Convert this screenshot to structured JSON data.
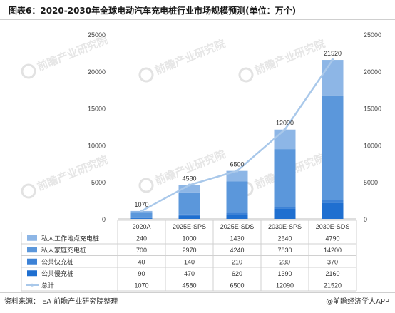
{
  "title": "图表6：2020-2030年全球电动汽车充电桩行业市场规模预测(单位：万个)",
  "source": "资料来源：IEA 前瞻产业研究院整理",
  "brand": "@前瞻经济学人APP",
  "watermark": "前瞻产业研究院",
  "colors": {
    "private_work": "#8db6e6",
    "private_home": "#5b97db",
    "public_fast": "#3d82d6",
    "public_slow": "#1f6fd0",
    "total_line": "#a9c8ea"
  },
  "chart_data": {
    "type": "bar",
    "stacked": true,
    "categories": [
      "2020A",
      "2025E-SPS",
      "2025E-SDS",
      "2030E-SPS",
      "2030E-SDS"
    ],
    "series": [
      {
        "name": "公共慢充桩",
        "values": [
          90,
          470,
          620,
          1390,
          2160
        ],
        "color_key": "public_slow"
      },
      {
        "name": "公共快充桩",
        "values": [
          40,
          140,
          210,
          230,
          370
        ],
        "color_key": "public_fast"
      },
      {
        "name": "私人家庭充电桩",
        "values": [
          700,
          2970,
          4240,
          7830,
          14200
        ],
        "color_key": "private_home"
      },
      {
        "name": "私人工作地点充电桩",
        "values": [
          240,
          1000,
          1430,
          2640,
          4790
        ],
        "color_key": "private_work"
      }
    ],
    "total": {
      "name": "总计",
      "values": [
        1070,
        4580,
        6500,
        12090,
        21520
      ],
      "type": "line"
    },
    "y_ticks": [
      0,
      5000,
      10000,
      15000,
      20000,
      25000
    ],
    "ylim": [
      0,
      25000
    ],
    "secondary_y_ticks": [
      0,
      5000,
      10000,
      15000,
      20000,
      25000
    ],
    "legend_placement": "data-table-left",
    "table_rows": [
      {
        "name": "私人工作地点充电桩",
        "values": [
          240,
          1000,
          1430,
          2640,
          4790
        ],
        "color_key": "private_work",
        "marker": "square"
      },
      {
        "name": "私人家庭充电桩",
        "values": [
          700,
          2970,
          4240,
          7830,
          14200
        ],
        "color_key": "private_home",
        "marker": "square"
      },
      {
        "name": "公共快充桩",
        "values": [
          40,
          140,
          210,
          230,
          370
        ],
        "color_key": "public_fast",
        "marker": "square"
      },
      {
        "name": "公共慢充桩",
        "values": [
          90,
          470,
          620,
          1390,
          2160
        ],
        "color_key": "public_slow",
        "marker": "square"
      },
      {
        "name": "总计",
        "values": [
          1070,
          4580,
          6500,
          12090,
          21520
        ],
        "color_key": "total_line",
        "marker": "line"
      }
    ]
  }
}
